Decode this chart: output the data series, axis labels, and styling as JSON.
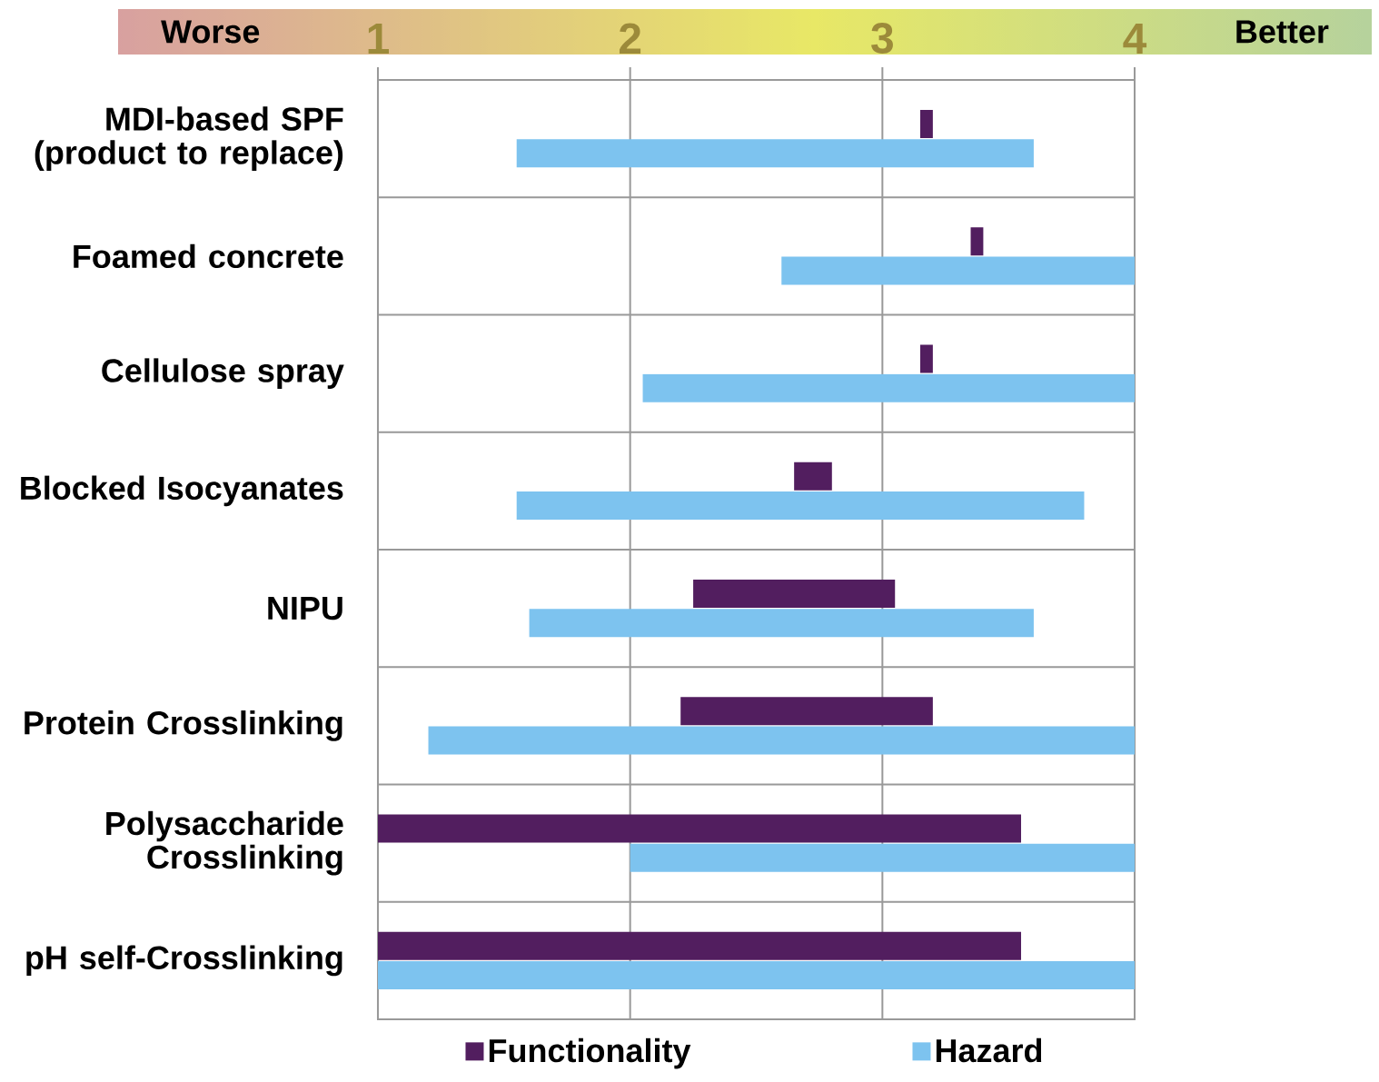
{
  "chart_data": {
    "type": "bar",
    "orientation": "horizontal",
    "categories": [
      "MDI-based SPF (product to replace)",
      "Foamed concrete",
      "Cellulose spray",
      "Blocked Isocyanates",
      "NIPU",
      "Protein Crosslinking",
      "Polysaccharide Crosslinking",
      "pH self-Crosslinking"
    ],
    "series": [
      {
        "name": "Functionality",
        "color": "#521e5f",
        "base": [
          3.15,
          3.35,
          3.15,
          2.65,
          2.25,
          2.2,
          1.0,
          1.0
        ],
        "values": [
          0.05,
          0.05,
          0.05,
          0.15,
          0.8,
          1.0,
          2.55,
          2.55
        ]
      },
      {
        "name": "Hazard",
        "color": "#7dc3ef",
        "base": [
          1.55,
          2.6,
          2.05,
          1.55,
          1.6,
          1.2,
          2.0,
          1.0
        ],
        "values": [
          2.05,
          1.4,
          1.95,
          2.25,
          2.0,
          2.8,
          2.0,
          3.0
        ]
      }
    ],
    "xlim": [
      1,
      4
    ],
    "xticks": [
      1,
      2,
      3,
      4
    ],
    "grid": true,
    "legend": "bottom",
    "annotations": [
      "Worse",
      "Better"
    ]
  }
}
